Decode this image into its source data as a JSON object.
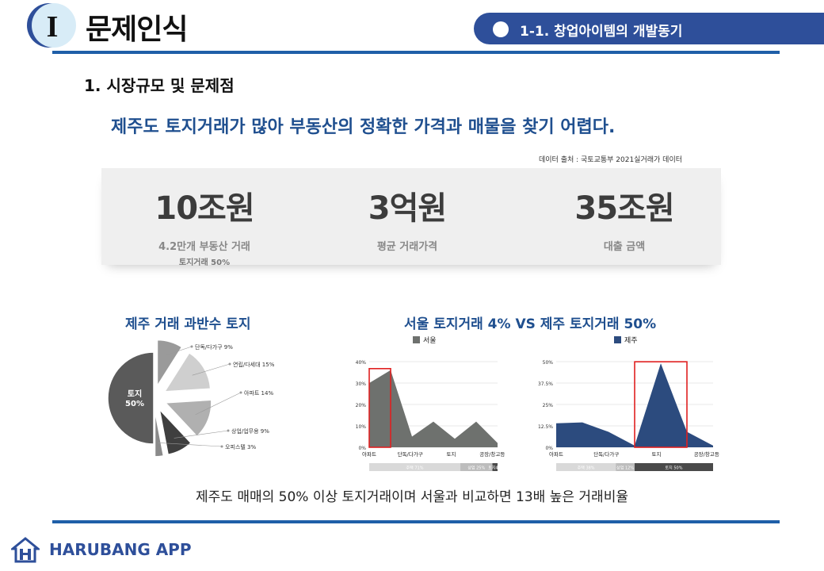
{
  "header": {
    "roman_numeral": "I",
    "title": "문제인식",
    "section_label": "1-1. 창업아이템의 개발동기"
  },
  "subhead": "1. 시장규모 및 문제점",
  "headline": "제주도  토지거래가 많아 부동산의 정확한 가격과 매물을 찾기 어렵다.",
  "source": "데이터 출처 : 국토교통부 2021실거래가 데이터",
  "stats": [
    {
      "value": "10조원",
      "label": "4.2만개 부동산 거래",
      "sublabel": "토지거래 50%"
    },
    {
      "value": "3억원",
      "label": "평균 거래가격",
      "sublabel": ""
    },
    {
      "value": "35조원",
      "label": "대출 금액",
      "sublabel": ""
    }
  ],
  "pie_title": "제주 거래 과반수 토지",
  "charts_title": "서울 토지거래 4%  VS  제주 토지거래 50%",
  "chart_data": [
    {
      "type": "pie",
      "title": "제주 거래 과반수 토지",
      "slices": [
        {
          "label": "토지\n50%",
          "value": 50
        },
        {
          "label": "단독/다가구 9%",
          "value": 9
        },
        {
          "label": "연립/다세대 15%",
          "value": 15
        },
        {
          "label": "아파트 14%",
          "value": 14
        },
        {
          "label": "상업/업무용 9%",
          "value": 9
        },
        {
          "label": "오피스텔 3%",
          "value": 3
        }
      ],
      "colors": [
        "#5a5a5a",
        "#9a9a9a",
        "#cfcfcf",
        "#b0b0b0",
        "#3f3f3f",
        "#8a8a8a"
      ]
    },
    {
      "type": "area",
      "legend": "서울",
      "color": "#6e716e",
      "categories": [
        "아파트",
        "단독/다가구",
        "토지",
        "공장/창고등"
      ],
      "x": [
        0,
        1,
        2,
        3,
        4,
        5,
        6
      ],
      "values": [
        30,
        36,
        5,
        12,
        4,
        12,
        2
      ],
      "y_ticks": [
        "0%",
        "10%",
        "20%",
        "30%",
        "40%"
      ],
      "ylim": [
        0,
        40
      ],
      "highlight": [
        0,
        1
      ],
      "bands": [
        {
          "label": "주택 71%",
          "color": "#d9d9d9",
          "share": 0.71
        },
        {
          "label": "상업 25%",
          "color": "#bdbdbd",
          "share": 0.25
        },
        {
          "label": "토지4%",
          "color": "#4a4a4a",
          "share": 0.04
        }
      ]
    },
    {
      "type": "area",
      "legend": "제주",
      "color": "#2c4b7e",
      "categories": [
        "아파트",
        "단독/다가구",
        "토지",
        "공장/창고등"
      ],
      "x": [
        0,
        1,
        2,
        3,
        4,
        5,
        6
      ],
      "values": [
        14,
        14.5,
        9,
        1,
        49,
        9,
        1
      ],
      "y_ticks": [
        "0%",
        "12.5%",
        "25%",
        "37.5%",
        "50%"
      ],
      "ylim": [
        0,
        50
      ],
      "highlight": [
        3,
        5
      ],
      "bands": [
        {
          "label": "주택 38%",
          "color": "#d9d9d9",
          "share": 0.38
        },
        {
          "label": "상업 12%",
          "color": "#bdbdbd",
          "share": 0.12
        },
        {
          "label": "토지 50%",
          "color": "#4a4a4a",
          "share": 0.5
        }
      ]
    }
  ],
  "caption": "제주도 매매의 50% 이상 토지거래이며 서울과 비교하면 13배 높은 거래비율",
  "logo_text": "HARUBANG APP",
  "colors": {
    "accent": "#2e4f9a",
    "rule": "#1f5fa8",
    "headline": "#1f4f8f",
    "highlight_box": "#e02020"
  }
}
